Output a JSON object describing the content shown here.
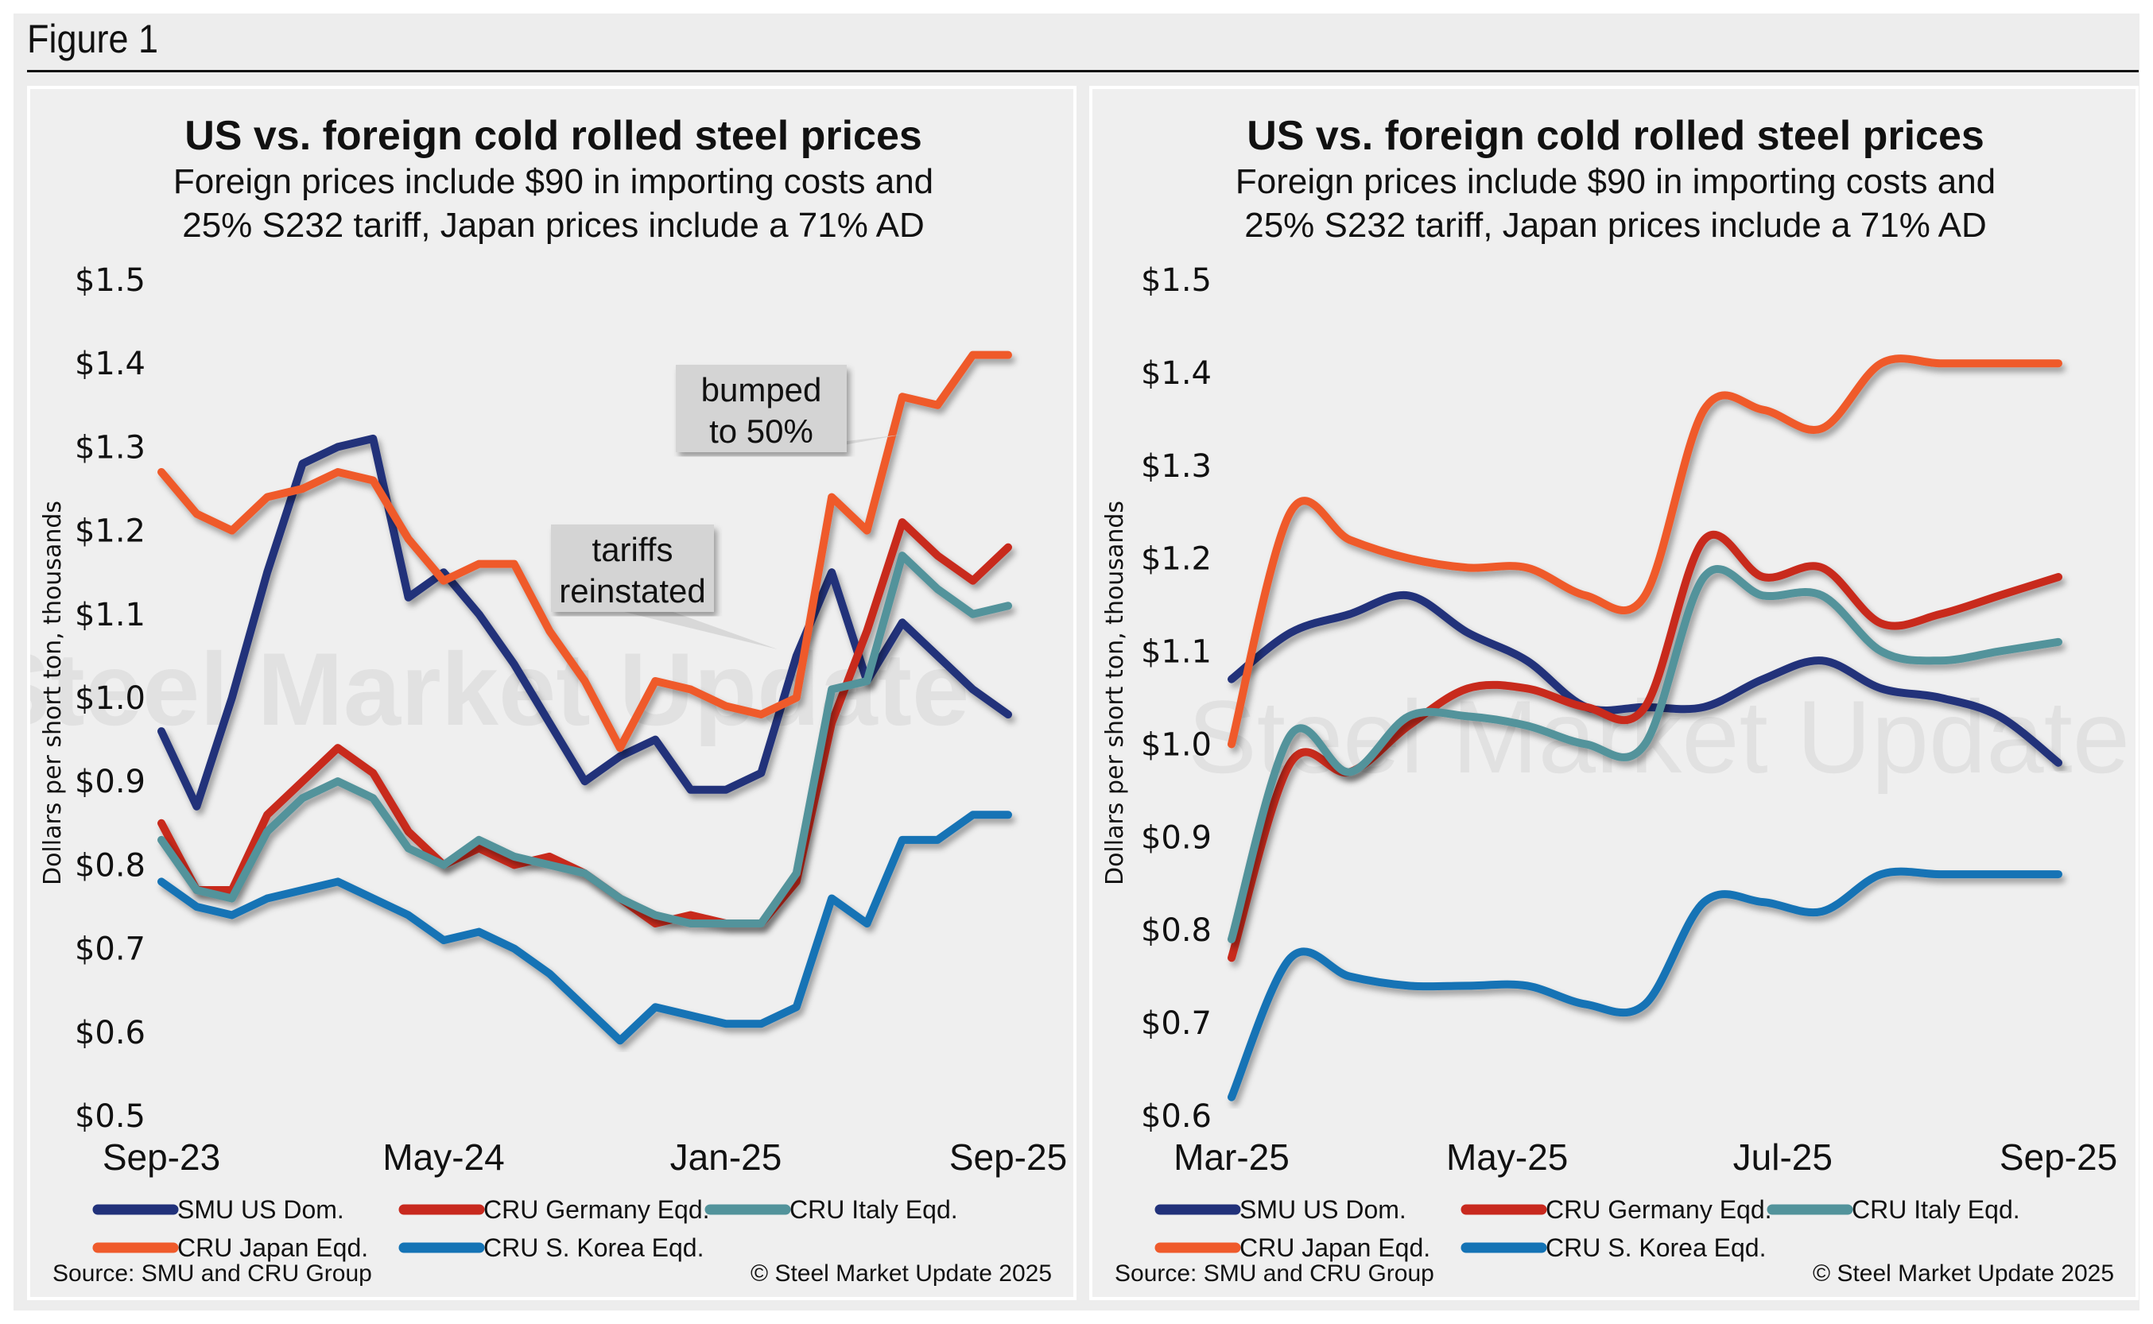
{
  "figure": {
    "title": "Figure 1"
  },
  "colors": {
    "smu_us": "#21317a",
    "germany": "#c8291e",
    "italy": "#52939b",
    "japan": "#ef5a2b",
    "korea": "#1473b5"
  },
  "chart_data": [
    {
      "type": "line",
      "title": "US vs. foreign cold rolled steel prices",
      "subtitle_lines": [
        "Foreign prices include $90 in importing costs and",
        "25% S232 tariff, Japan prices include a 71% AD"
      ],
      "ylabel": "Dollars per short ton, thousands",
      "xlabel": "",
      "ylim": [
        0.5,
        1.5
      ],
      "yticks": [
        1.5,
        1.4,
        1.3,
        1.2,
        1.1,
        1.0,
        0.9,
        0.8,
        0.7,
        0.6,
        0.5
      ],
      "ytick_labels": [
        "$1.5",
        "$1.4",
        "$1.3",
        "$1.2",
        "$1.1",
        "$1.0",
        "$0.9",
        "$0.8",
        "$0.7",
        "$0.6",
        "$0.5"
      ],
      "xtick_labels": [
        "Sep-23",
        "May-24",
        "Jan-25",
        "Sep-25"
      ],
      "x": [
        "Sep-23",
        "Oct-23",
        "Nov-23",
        "Dec-23",
        "Jan-24",
        "Feb-24",
        "Mar-24",
        "Apr-24",
        "May-24",
        "Jun-24",
        "Jul-24",
        "Aug-24",
        "Sep-24",
        "Oct-24",
        "Nov-24",
        "Dec-24",
        "Jan-25",
        "Feb-25",
        "Mar-25",
        "Apr-25",
        "May-25",
        "Jun-25",
        "Jul-25",
        "Aug-25",
        "Sep-25"
      ],
      "series": [
        {
          "name": "SMU US Dom.",
          "color_key": "smu_us",
          "values": [
            0.96,
            0.87,
            1.0,
            1.15,
            1.28,
            1.3,
            1.31,
            1.12,
            1.15,
            1.1,
            1.04,
            0.97,
            0.9,
            0.93,
            0.95,
            0.89,
            0.89,
            0.91,
            1.05,
            1.15,
            1.02,
            1.09,
            1.05,
            1.01,
            0.98
          ]
        },
        {
          "name": "CRU Germany Eqd.",
          "color_key": "germany",
          "values": [
            0.85,
            0.77,
            0.77,
            0.86,
            0.9,
            0.94,
            0.91,
            0.84,
            0.8,
            0.82,
            0.8,
            0.81,
            0.79,
            0.76,
            0.73,
            0.74,
            0.73,
            0.73,
            0.78,
            0.97,
            1.08,
            1.21,
            1.17,
            1.14,
            1.18
          ]
        },
        {
          "name": "CRU Italy Eqd.",
          "color_key": "italy",
          "values": [
            0.83,
            0.77,
            0.76,
            0.84,
            0.88,
            0.9,
            0.88,
            0.82,
            0.8,
            0.83,
            0.81,
            0.8,
            0.79,
            0.76,
            0.74,
            0.73,
            0.73,
            0.73,
            0.79,
            1.01,
            1.02,
            1.17,
            1.13,
            1.1,
            1.11
          ]
        },
        {
          "name": "CRU Japan Eqd.",
          "color_key": "japan",
          "values": [
            1.27,
            1.22,
            1.2,
            1.24,
            1.25,
            1.27,
            1.26,
            1.19,
            1.14,
            1.16,
            1.16,
            1.08,
            1.02,
            0.94,
            1.02,
            1.01,
            0.99,
            0.98,
            1.0,
            1.24,
            1.2,
            1.36,
            1.35,
            1.41,
            1.41
          ]
        },
        {
          "name": "CRU S. Korea Eqd.",
          "color_key": "korea",
          "values": [
            0.78,
            0.75,
            0.74,
            0.76,
            0.77,
            0.78,
            0.76,
            0.74,
            0.71,
            0.72,
            0.7,
            0.67,
            0.63,
            0.59,
            0.63,
            0.62,
            0.61,
            0.61,
            0.63,
            0.76,
            0.73,
            0.83,
            0.83,
            0.86,
            0.86
          ]
        }
      ],
      "annotations": [
        {
          "text_lines": [
            "tariffs",
            "reinstated"
          ],
          "x": "Mar-25"
        },
        {
          "text_lines": [
            "bumped",
            "to 50%"
          ],
          "x": "Jun-25"
        }
      ],
      "legend": [
        "SMU US Dom.",
        "CRU Germany Eqd.",
        "CRU Italy Eqd.",
        "CRU Japan Eqd.",
        "CRU S. Korea Eqd."
      ],
      "legend_position": "bottom",
      "source": "Source: SMU and CRU Group",
      "copyright": "© Steel Market Update 2025",
      "watermark": "Steel Market Update",
      "grid": false
    },
    {
      "type": "line",
      "title": "US vs. foreign cold rolled steel prices",
      "subtitle_lines": [
        "Foreign prices include $90 in importing costs and",
        "25% S232 tariff, Japan prices include a 71% AD"
      ],
      "ylabel": "Dollars per short ton, thousands",
      "xlabel": "",
      "ylim": [
        0.6,
        1.5
      ],
      "yticks": [
        1.5,
        1.4,
        1.3,
        1.2,
        1.1,
        1.0,
        0.9,
        0.8,
        0.7,
        0.6
      ],
      "ytick_labels": [
        "$1.5",
        "$1.4",
        "$1.3",
        "$1.2",
        "$1.1",
        "$1.0",
        "$0.9",
        "$0.8",
        "$0.7",
        "$0.6"
      ],
      "xtick_labels": [
        "Mar-25",
        "May-25",
        "Jul-25",
        "Sep-25"
      ],
      "x": [
        "Mar-25 w1",
        "Mar-25 w3",
        "Apr-25 w1",
        "Apr-25 w3",
        "May-25 w1",
        "May-25 w3",
        "Jun-25 w1",
        "Jun-25 w2",
        "Jun-25 w3",
        "Jul-25 w1",
        "Jul-25 w3",
        "Aug-25 w1",
        "Aug-25 w3",
        "Sep-25 w1",
        "Sep-25 w3"
      ],
      "series": [
        {
          "name": "SMU US Dom.",
          "color_key": "smu_us",
          "values": [
            1.07,
            1.12,
            1.14,
            1.16,
            1.12,
            1.09,
            1.04,
            1.04,
            1.04,
            1.07,
            1.09,
            1.06,
            1.05,
            1.03,
            0.98
          ]
        },
        {
          "name": "CRU Germany Eqd.",
          "color_key": "germany",
          "values": [
            0.77,
            0.98,
            0.97,
            1.02,
            1.06,
            1.06,
            1.04,
            1.04,
            1.22,
            1.18,
            1.19,
            1.13,
            1.14,
            1.16,
            1.18
          ]
        },
        {
          "name": "CRU Italy Eqd.",
          "color_key": "italy",
          "values": [
            0.79,
            1.01,
            0.97,
            1.03,
            1.03,
            1.02,
            1.0,
            1.0,
            1.18,
            1.16,
            1.16,
            1.1,
            1.09,
            1.1,
            1.11
          ]
        },
        {
          "name": "CRU Japan Eqd.",
          "color_key": "japan",
          "values": [
            1.0,
            1.25,
            1.22,
            1.2,
            1.19,
            1.19,
            1.16,
            1.16,
            1.36,
            1.36,
            1.34,
            1.41,
            1.41,
            1.41,
            1.41
          ]
        },
        {
          "name": "CRU S. Korea Eqd.",
          "color_key": "korea",
          "values": [
            0.62,
            0.77,
            0.75,
            0.74,
            0.74,
            0.74,
            0.72,
            0.72,
            0.83,
            0.83,
            0.82,
            0.86,
            0.86,
            0.86,
            0.86
          ]
        }
      ],
      "legend": [
        "SMU US Dom.",
        "CRU Germany Eqd.",
        "CRU Italy Eqd.",
        "CRU Japan Eqd.",
        "CRU S. Korea Eqd."
      ],
      "legend_position": "bottom",
      "source": "Source: SMU and CRU Group",
      "copyright": "© Steel Market Update 2025",
      "watermark": "Steel Market Update",
      "grid": false
    }
  ]
}
